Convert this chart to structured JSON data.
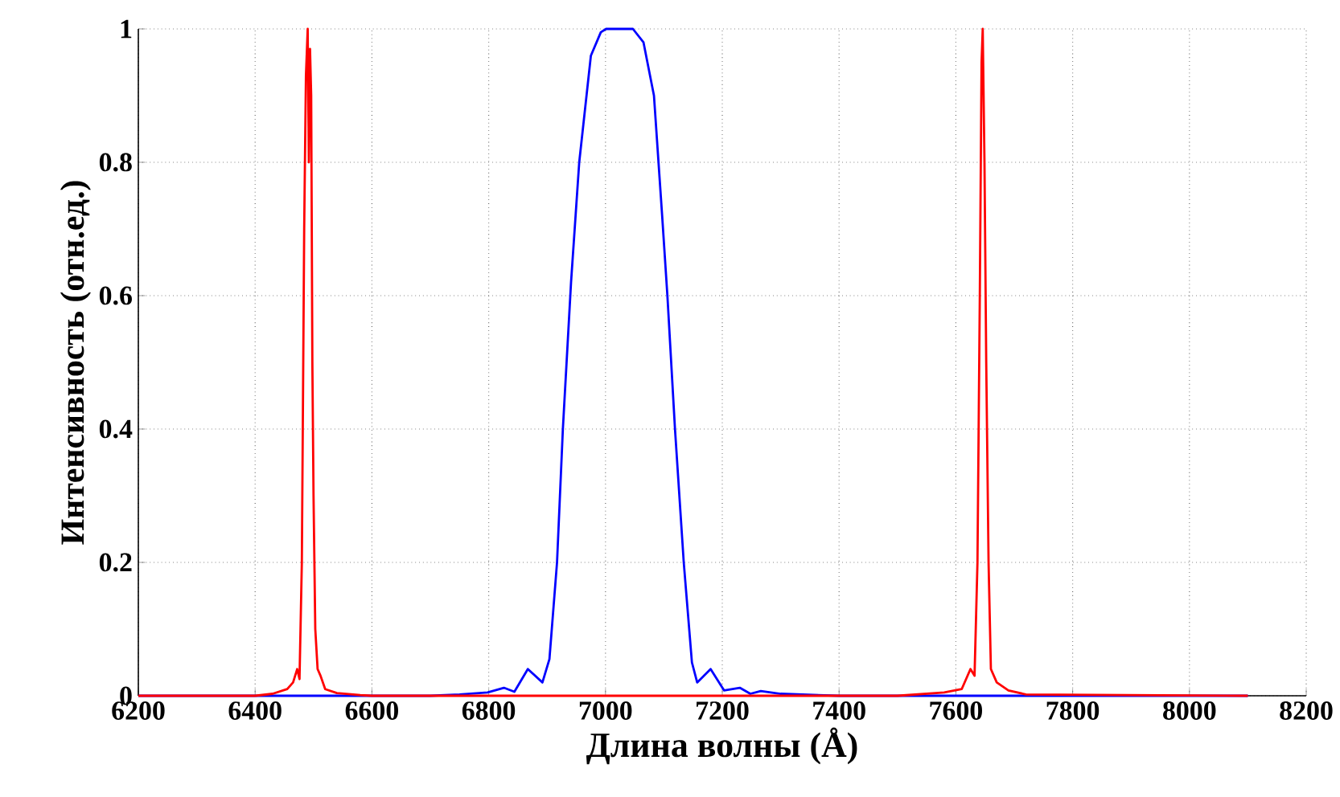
{
  "chart_data": {
    "type": "line",
    "xlabel": "Длина волны (Å)",
    "ylabel": "Интенсивность (отн.ед.)",
    "xlim": [
      6200,
      8200
    ],
    "ylim": [
      0,
      1
    ],
    "xticks": [
      6200,
      6400,
      6600,
      6800,
      7000,
      7200,
      7400,
      7600,
      7800,
      8000,
      8200
    ],
    "yticks": [
      0,
      0.2,
      0.4,
      0.6,
      0.8,
      1
    ],
    "grid": true,
    "marker": "none",
    "line_style": "solid",
    "series": [
      {
        "color": "#0000ff",
        "x": [
          6200,
          6700,
          6750,
          6798,
          6826,
          6844,
          6867,
          6892,
          6904,
          6917,
          6927,
          6941,
          6955,
          6975,
          6992,
          7001,
          7047,
          7065,
          7083,
          7097,
          7106,
          7119,
          7134,
          7148,
          7157,
          7180,
          7203,
          7230,
          7248,
          7266,
          7300,
          7400,
          8100
        ],
        "values": [
          0,
          0,
          0.002,
          0.005,
          0.012,
          0.006,
          0.04,
          0.02,
          0.055,
          0.2,
          0.4,
          0.62,
          0.8,
          0.96,
          0.995,
          1,
          1,
          0.98,
          0.9,
          0.72,
          0.6,
          0.4,
          0.2,
          0.05,
          0.02,
          0.04,
          0.008,
          0.012,
          0.003,
          0.007,
          0.003,
          0,
          0
        ]
      },
      {
        "color": "#ff0000",
        "x": [
          6200,
          6400,
          6430,
          6455,
          6465,
          6472,
          6476,
          6480,
          6484,
          6487,
          6490,
          6492,
          6494,
          6496,
          6498,
          6500,
          6503,
          6507,
          6512,
          6520,
          6540,
          6580,
          6600,
          7500,
          7580,
          7610,
          7625,
          7632,
          7637,
          7641,
          7644,
          7646,
          7649,
          7652,
          7656,
          7660,
          7670,
          7690,
          7720,
          8100
        ],
        "values": [
          0,
          0,
          0.003,
          0.01,
          0.02,
          0.04,
          0.025,
          0.2,
          0.7,
          0.93,
          1,
          0.8,
          0.97,
          0.9,
          0.5,
          0.3,
          0.1,
          0.04,
          0.03,
          0.01,
          0.004,
          0.001,
          0,
          0,
          0.005,
          0.01,
          0.04,
          0.03,
          0.2,
          0.6,
          0.95,
          1,
          0.8,
          0.5,
          0.2,
          0.04,
          0.02,
          0.008,
          0.002,
          0
        ]
      }
    ]
  }
}
